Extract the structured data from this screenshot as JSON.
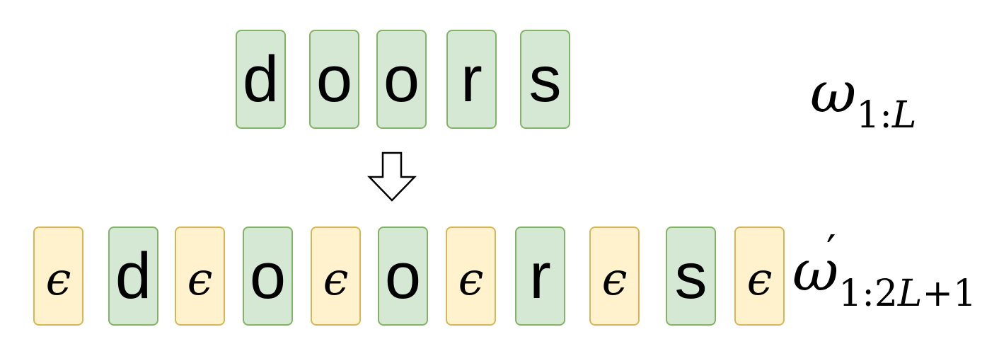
{
  "input_sequence": {
    "tokens": [
      "d",
      "o",
      "o",
      "r",
      "s"
    ],
    "label": {
      "symbol": "ω",
      "subscript_start": "1:",
      "subscript_var": "L",
      "subscript_end": ""
    }
  },
  "output_sequence": {
    "tokens": [
      {
        "text": "ϵ",
        "kind": "blank"
      },
      {
        "text": "d",
        "kind": "char"
      },
      {
        "text": "ϵ",
        "kind": "blank"
      },
      {
        "text": "o",
        "kind": "char"
      },
      {
        "text": "ϵ",
        "kind": "blank"
      },
      {
        "text": "o",
        "kind": "char"
      },
      {
        "text": "ϵ",
        "kind": "blank"
      },
      {
        "text": "r",
        "kind": "char"
      },
      {
        "text": "ϵ",
        "kind": "blank"
      },
      {
        "text": "s",
        "kind": "char"
      },
      {
        "text": "ϵ",
        "kind": "blank"
      }
    ],
    "label": {
      "symbol": "ω",
      "prime": "′",
      "subscript_start": "1:2",
      "subscript_var": "L",
      "subscript_end": "+1"
    }
  },
  "arrow": {
    "direction": "down"
  },
  "colors": {
    "char_fill": "#d5e8d4",
    "char_border": "#82b366",
    "blank_fill": "#fff2cc",
    "blank_border": "#d6b656"
  }
}
